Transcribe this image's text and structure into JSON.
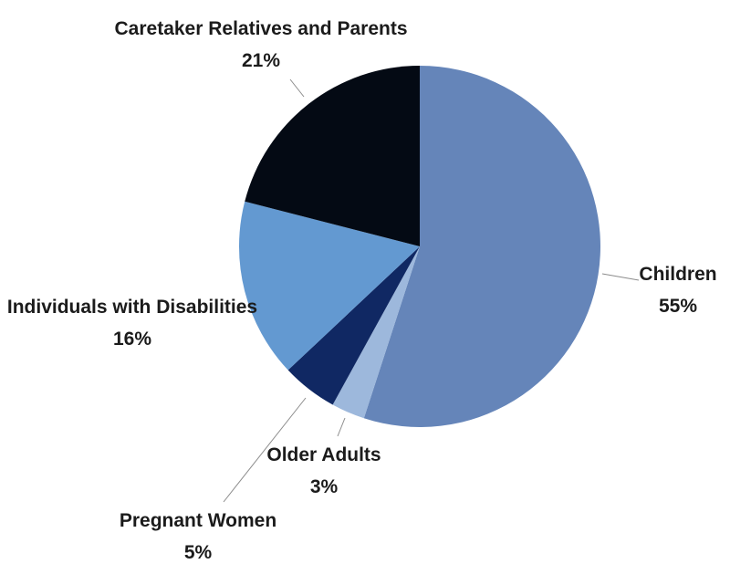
{
  "chart_data": {
    "type": "pie",
    "title": "",
    "start": "12 o'clock",
    "direction": "clockwise",
    "legend": "none",
    "slices": [
      {
        "label": "Children",
        "value": 55,
        "value_label": "55%",
        "color": "#6585b9"
      },
      {
        "label": "Older Adults",
        "value": 3,
        "value_label": "3%",
        "color": "#9db8dc"
      },
      {
        "label": "Pregnant Women",
        "value": 5,
        "value_label": "5%",
        "color": "#102863"
      },
      {
        "label": "Individuals with Disabilities",
        "value": 16,
        "value_label": "16%",
        "color": "#6399d1"
      },
      {
        "label": "Caretaker Relatives and Parents",
        "value": 21,
        "value_label": "21%",
        "color": "#040a14"
      }
    ]
  }
}
